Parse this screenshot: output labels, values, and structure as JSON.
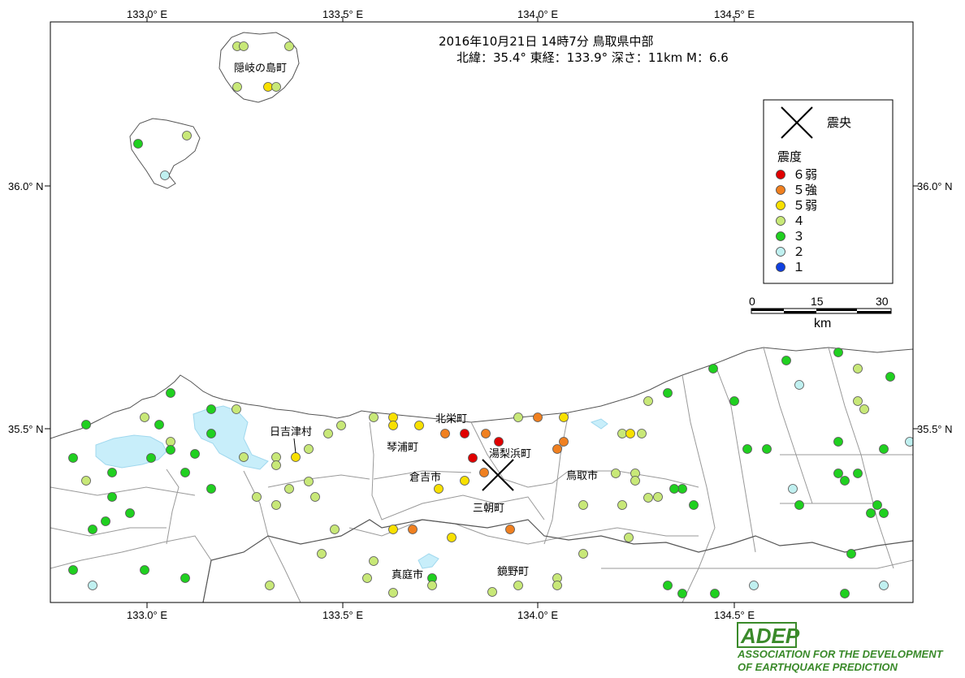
{
  "title": {
    "line1": "2016年10月21日 14時7分  鳥取県中部",
    "line2": "北緯：35.4°  東経：133.9°  深さ：11km  M：6.6"
  },
  "axes": {
    "top_lon": [
      "133.0° E",
      "133.5° E",
      "134.0° E",
      "134.5° E"
    ],
    "bottom_lon": [
      "133.0° E",
      "133.5° E",
      "134.0° E",
      "134.5° E"
    ],
    "left_lat": [
      "36.0° N",
      "35.5° N"
    ],
    "right_lat": [
      "36.0° N",
      "35.5° N"
    ]
  },
  "places": {
    "oki": "隠岐の島町",
    "hiezu": "日吉津村",
    "hokuei": "北栄町",
    "kotoura": "琴浦町",
    "yurihama": "湯梨浜町",
    "kurayoshi": "倉吉市",
    "tottori": "鳥取市",
    "misasa": "三朝町",
    "maniwa": "真庭市",
    "kagamino": "鏡野町"
  },
  "legend": {
    "epicenter_label": "震央",
    "intensity_title": "震度",
    "levels": [
      {
        "label": "６弱",
        "color": "#e00000"
      },
      {
        "label": "５強",
        "color": "#f08020"
      },
      {
        "label": "５弱",
        "color": "#f8e000"
      },
      {
        "label": "４",
        "color": "#c8e878"
      },
      {
        "label": "３",
        "color": "#20d020"
      },
      {
        "label": "２",
        "color": "#c0f0f0"
      },
      {
        "label": "１",
        "color": "#1040e0"
      }
    ]
  },
  "scale": {
    "ticks": [
      "0",
      "15",
      "30"
    ],
    "unit": "km"
  },
  "logo": {
    "name": "ADEP",
    "line1": "ASSOCIATION FOR THE DEVELOPMENT",
    "line2": "OF EARTHQUAKE PREDICTION"
  },
  "epicenter": {
    "lon": 133.86,
    "lat": 35.38
  }
}
